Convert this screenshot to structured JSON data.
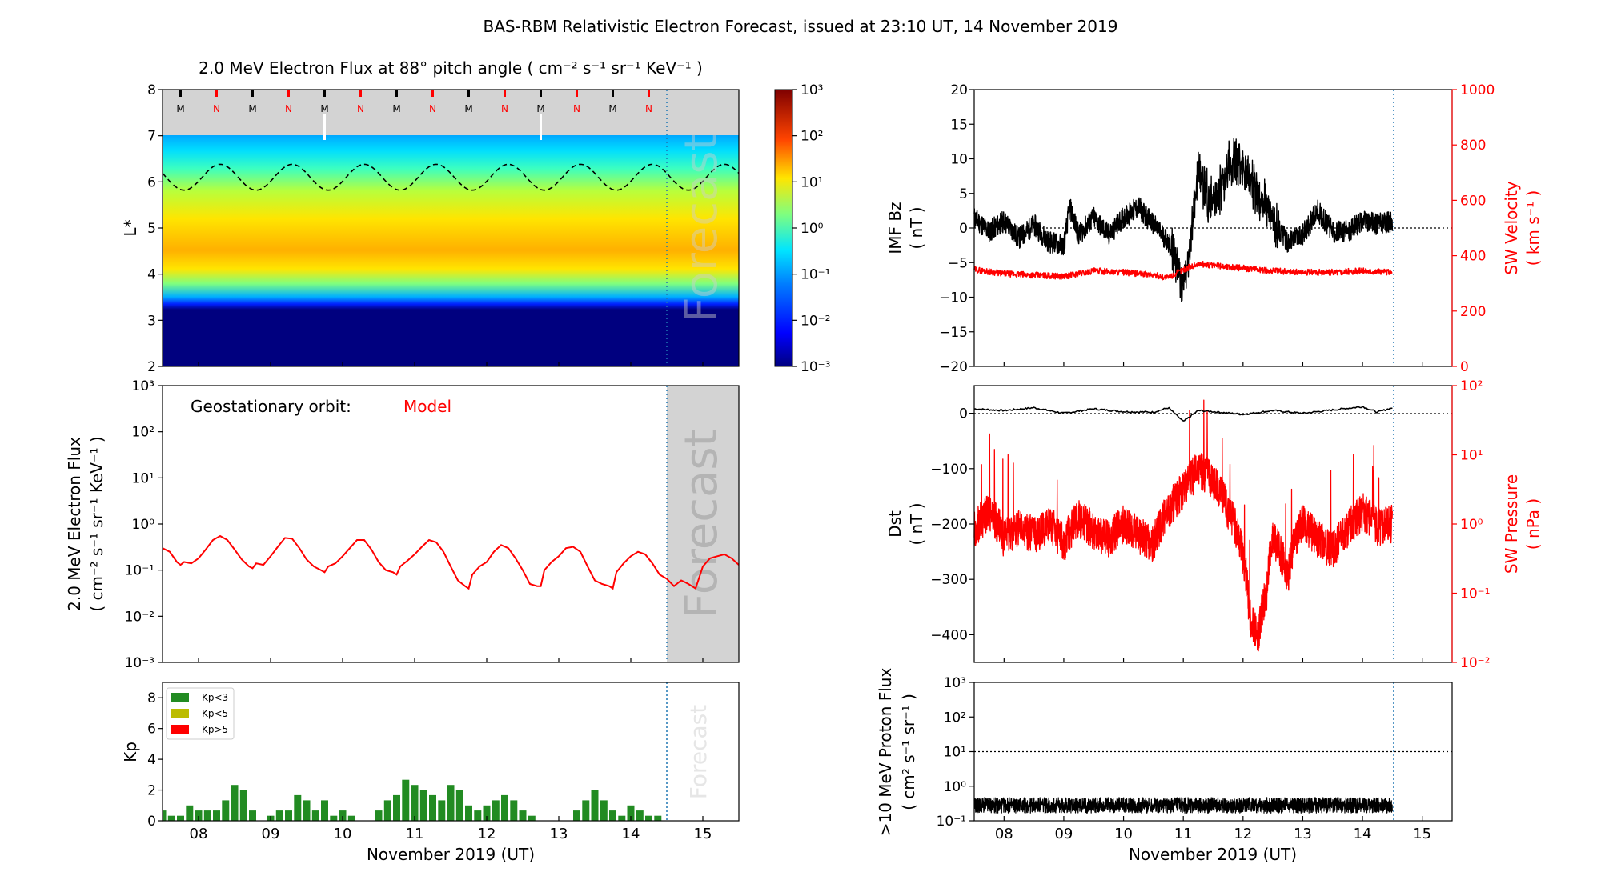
{
  "figure_title": "BAS-RBM Relativistic Electron Forecast, issued at 23:10 UT, 14 November 2019",
  "colors": {
    "red": "#ff0000",
    "black": "#000000",
    "green": "#228b22",
    "olive": "#bcbc00",
    "forecast_grey": "#d3d3d3",
    "dotted_blue": "#1f77b4"
  },
  "chart_data": [
    {
      "id": "lstar-spectrogram",
      "type": "heatmap",
      "title": "2.0 MeV Electron Flux at 88° pitch angle ( cm⁻² s⁻¹ sr⁻¹ KeV⁻¹ )",
      "ylabel": "L*",
      "ylim": [
        2,
        8
      ],
      "xlim": [
        7.5,
        15.5
      ],
      "yticks": [
        "2",
        "3",
        "4",
        "5",
        "6",
        "7",
        "8"
      ],
      "forecast_start": 14.5,
      "forecast_label": "Forecast",
      "mlt_markers": [
        "M",
        "N",
        "M",
        "N",
        "M",
        "N",
        "M",
        "N",
        "M",
        "N",
        "M",
        "N",
        "M",
        "N"
      ],
      "magnetopause_mean": 6.1,
      "magnetopause_amplitude": 0.28,
      "colorbar": {
        "scale": "log",
        "range": [
          0.001,
          1000
        ],
        "ticks": [
          "10⁻³",
          "10⁻²",
          "10⁻¹",
          "10⁰",
          "10¹",
          "10²",
          "10³"
        ]
      }
    },
    {
      "id": "geo-flux",
      "type": "line",
      "ylabel_line1": "2.0 MeV Electron Flux",
      "ylabel_line2": "( cm⁻² s⁻¹ sr⁻¹ KeV⁻¹ )",
      "annotation_label": "Geostationary orbit:",
      "annotation_model": "Model",
      "forecast_label": "Forecast",
      "yscale": "log",
      "ylim": [
        0.001,
        1000
      ],
      "yticks": [
        "10⁻³",
        "10⁻²",
        "10⁻¹",
        "10⁰",
        "10¹",
        "10²",
        "10³"
      ],
      "xlim": [
        7.5,
        15.5
      ],
      "series": [
        {
          "x": [
            7.5,
            7.6,
            7.7,
            7.75,
            7.8,
            7.9,
            8.0,
            8.1,
            8.2,
            8.3,
            8.4,
            8.5,
            8.6,
            8.7,
            8.75,
            8.8,
            8.9,
            9.0,
            9.1,
            9.2,
            9.3,
            9.4,
            9.5,
            9.6,
            9.7,
            9.75,
            9.8,
            9.9,
            10.0,
            10.1,
            10.2,
            10.3,
            10.4,
            10.5,
            10.6,
            10.7,
            10.75,
            10.8,
            10.9,
            11.0,
            11.1,
            11.2,
            11.3,
            11.4,
            11.5,
            11.6,
            11.7,
            11.75,
            11.8,
            11.9,
            12.0,
            12.1,
            12.2,
            12.3,
            12.4,
            12.5,
            12.6,
            12.7,
            12.75,
            12.8,
            12.9,
            13.0,
            13.1,
            13.2,
            13.3,
            13.4,
            13.5,
            13.6,
            13.7,
            13.75,
            13.8,
            13.9,
            14.0,
            14.1,
            14.2,
            14.3,
            14.4,
            14.5,
            14.6,
            14.7,
            14.75,
            14.8,
            14.9,
            15.0,
            15.1,
            15.2,
            15.3,
            15.4,
            15.5
          ],
          "y": [
            0.3,
            0.25,
            0.15,
            0.13,
            0.15,
            0.14,
            0.18,
            0.28,
            0.45,
            0.55,
            0.45,
            0.28,
            0.17,
            0.12,
            0.11,
            0.14,
            0.13,
            0.2,
            0.32,
            0.5,
            0.48,
            0.3,
            0.17,
            0.12,
            0.1,
            0.09,
            0.12,
            0.14,
            0.2,
            0.3,
            0.45,
            0.45,
            0.28,
            0.15,
            0.1,
            0.09,
            0.08,
            0.12,
            0.16,
            0.22,
            0.32,
            0.45,
            0.4,
            0.25,
            0.12,
            0.06,
            0.045,
            0.04,
            0.08,
            0.12,
            0.15,
            0.25,
            0.35,
            0.3,
            0.18,
            0.1,
            0.05,
            0.045,
            0.045,
            0.1,
            0.15,
            0.2,
            0.3,
            0.32,
            0.25,
            0.12,
            0.06,
            0.05,
            0.045,
            0.04,
            0.09,
            0.14,
            0.2,
            0.25,
            0.22,
            0.14,
            0.08,
            0.065,
            0.045,
            0.06,
            0.055,
            0.05,
            0.04,
            0.12,
            0.18,
            0.2,
            0.22,
            0.18,
            0.13
          ]
        }
      ]
    },
    {
      "id": "kp",
      "type": "bar",
      "ylabel": "Kp",
      "xlabel": "November 2019 (UT)",
      "ylim": [
        0,
        9
      ],
      "yticks": [
        "0",
        "2",
        "4",
        "6",
        "8"
      ],
      "xlim": [
        7.5,
        15.5
      ],
      "xticks": [
        "08",
        "09",
        "10",
        "11",
        "12",
        "13",
        "14",
        "15"
      ],
      "forecast_label": "Forecast",
      "legend": [
        "Kp<3",
        "Kp<5",
        "Kp>5"
      ],
      "bar_width_days": 0.1,
      "x": [
        7.5,
        7.625,
        7.75,
        7.875,
        8.0,
        8.125,
        8.25,
        8.375,
        8.5,
        8.625,
        8.75,
        8.875,
        9.0,
        9.125,
        9.25,
        9.375,
        9.5,
        9.625,
        9.75,
        9.875,
        10.0,
        10.125,
        10.25,
        10.375,
        10.5,
        10.625,
        10.75,
        10.875,
        11.0,
        11.125,
        11.25,
        11.375,
        11.5,
        11.625,
        11.75,
        11.875,
        12.0,
        12.125,
        12.25,
        12.375,
        12.5,
        12.625,
        12.75,
        12.875,
        13.0,
        13.125,
        13.25,
        13.375,
        13.5,
        13.625,
        13.75,
        13.875,
        14.0,
        14.125,
        14.25,
        14.375
      ],
      "values": [
        0.67,
        0.33,
        0.33,
        1.0,
        0.67,
        0.67,
        0.67,
        1.33,
        2.33,
        2.0,
        0.67,
        0,
        0.33,
        0.67,
        0.67,
        1.67,
        1.33,
        0.67,
        1.33,
        0.33,
        0.67,
        0.33,
        0,
        0,
        0.67,
        1.33,
        1.67,
        2.67,
        2.33,
        2.0,
        1.67,
        1.33,
        2.33,
        2.0,
        1.0,
        0.67,
        1.0,
        1.33,
        1.67,
        1.33,
        0.67,
        0.33,
        0,
        0,
        0,
        0,
        0.67,
        1.33,
        2.0,
        1.33,
        0.67,
        0.33,
        1.0,
        0.67,
        0.33,
        0.33
      ]
    },
    {
      "id": "imf-sw",
      "type": "line",
      "ylabel_line1": "IMF Bz",
      "ylabel_line2": "( nT )",
      "ylim": [
        -20,
        20
      ],
      "yticks": [
        "−20",
        "−15",
        "−10",
        "−5",
        "0",
        "5",
        "10",
        "15",
        "20"
      ],
      "y2label_line1": "SW Velocity",
      "y2label_line2": "( km s⁻¹ )",
      "y2lim": [
        0,
        1000
      ],
      "y2ticks": [
        "0",
        "200",
        "400",
        "600",
        "800",
        "1000"
      ],
      "xlim": [
        7.5,
        15.5
      ],
      "series": [
        {
          "x": [
            7.5,
            7.75,
            8.0,
            8.25,
            8.5,
            8.75,
            9.0,
            9.1,
            9.25,
            9.5,
            9.75,
            10.0,
            10.25,
            10.5,
            10.75,
            10.9,
            11.0,
            11.1,
            11.25,
            11.5,
            11.75,
            11.9,
            12.0,
            12.25,
            12.5,
            12.75,
            13.0,
            13.25,
            13.5,
            13.75,
            14.0,
            14.25,
            14.5
          ],
          "y": [
            1.5,
            -0.5,
            1.0,
            -1.5,
            0.5,
            -2.0,
            -2.5,
            3.0,
            -1.0,
            1.5,
            -1.0,
            1.5,
            3.0,
            0.5,
            -2.0,
            -5.0,
            -9.0,
            -3.0,
            8.0,
            3.0,
            9.0,
            10.0,
            8.0,
            5.0,
            1.0,
            -2.0,
            -1.0,
            2.5,
            -0.5,
            -0.5,
            1.0,
            0.5,
            1.0
          ]
        },
        {
          "x": [
            7.5,
            8.0,
            8.5,
            9.0,
            9.5,
            10.0,
            10.5,
            10.75,
            11.0,
            11.25,
            11.5,
            11.75,
            12.0,
            12.5,
            13.0,
            13.5,
            14.0,
            14.5
          ],
          "y": [
            350,
            335,
            330,
            325,
            345,
            340,
            330,
            320,
            350,
            370,
            365,
            360,
            355,
            345,
            340,
            340,
            345,
            340
          ]
        }
      ]
    },
    {
      "id": "dst-pressure",
      "type": "line",
      "ylabel_line1": "Dst",
      "ylabel_line2": "( nT )",
      "ylim": [
        -450,
        50
      ],
      "yticks": [
        "−400",
        "−300",
        "−200",
        "−100",
        "0"
      ],
      "y2label_line1": "SW Pressure",
      "y2label_line2": "( nPa )",
      "y2scale": "log",
      "y2lim": [
        0.01,
        100
      ],
      "y2ticks": [
        "10⁻²",
        "10⁻¹",
        "10⁰",
        "10¹",
        "10²"
      ],
      "xlim": [
        7.5,
        15.5
      ],
      "series": [
        {
          "x": [
            7.5,
            8.0,
            8.5,
            9.0,
            9.5,
            10.0,
            10.5,
            10.75,
            10.9,
            11.0,
            11.25,
            11.5,
            12.0,
            12.5,
            13.0,
            13.5,
            14.0,
            14.25,
            14.5
          ],
          "y": [
            8,
            5,
            10,
            0,
            8,
            3,
            2,
            10,
            -5,
            -15,
            5,
            3,
            -2,
            5,
            0,
            6,
            12,
            2,
            10
          ]
        },
        {
          "x": [
            7.5,
            7.75,
            8.0,
            8.25,
            8.5,
            8.75,
            9.0,
            9.25,
            9.5,
            9.75,
            10.0,
            10.25,
            10.5,
            10.75,
            11.0,
            11.25,
            11.5,
            11.75,
            12.0,
            12.1,
            12.25,
            12.4,
            12.5,
            12.75,
            13.0,
            13.25,
            13.5,
            13.75,
            14.0,
            14.25,
            14.5
          ],
          "y": [
            0.8,
            1.5,
            0.6,
            0.9,
            0.7,
            1.0,
            0.5,
            1.2,
            0.8,
            0.6,
            1.0,
            0.7,
            0.5,
            1.5,
            3.0,
            6.0,
            4.0,
            1.5,
            0.3,
            0.05,
            0.02,
            0.1,
            0.6,
            0.15,
            1.0,
            0.6,
            0.4,
            0.8,
            1.5,
            0.9,
            1.0
          ]
        }
      ]
    },
    {
      "id": "proton-flux",
      "type": "line",
      "ylabel_line1": ">10 MeV Proton Flux",
      "ylabel_line2": "( cm² s⁻¹ sr⁻¹ )",
      "xlabel": "November 2019 (UT)",
      "yscale": "log",
      "ylim": [
        0.1,
        1000
      ],
      "yticks": [
        "10⁻¹",
        "10⁰",
        "10¹",
        "10²",
        "10³"
      ],
      "xlim": [
        7.5,
        15.5
      ],
      "xticks": [
        "08",
        "09",
        "10",
        "11",
        "12",
        "13",
        "14",
        "15"
      ],
      "threshold": 10,
      "series": [
        {
          "x": [
            7.5,
            14.5
          ],
          "y": [
            0.28,
            0.28
          ]
        }
      ]
    }
  ]
}
